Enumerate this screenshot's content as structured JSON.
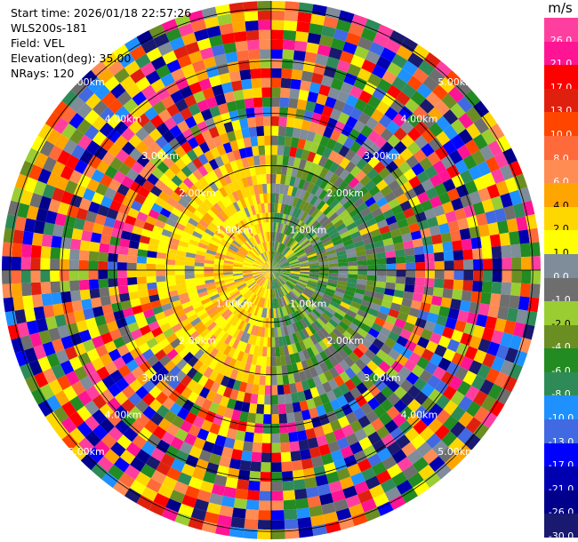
{
  "info": {
    "start_time": "Start time: 2026/01/18 22:57:26",
    "instrument": "WLS200s-181",
    "field": "Field: VEL",
    "elevation": "Elevation(deg): 35.00",
    "nrays": "NRays: 120"
  },
  "colorbar": {
    "unit": "m/s",
    "labels": [
      "26.0",
      "21.0",
      "17.0",
      "13.0",
      "10.0",
      "8.0",
      "6.0",
      "4.0",
      "2.0",
      "1.0",
      "0.0",
      "-1.0",
      "-2.0",
      "-4.0",
      "-6.0",
      "-8.0",
      "-10.0",
      "-13.0",
      "-17.0",
      "-21.0",
      "-26.0",
      "-30.0"
    ],
    "colors": [
      "#ff3fa0",
      "#ff1493",
      "#ff0000",
      "#e0200e",
      "#ff4500",
      "#ff6a3a",
      "#ff8c52",
      "#ffa500",
      "#ffd700",
      "#ffff00",
      "#7f8c9a",
      "#6e6e6e",
      "#9acd32",
      "#6b8e23",
      "#228b22",
      "#2e8b57",
      "#1e90ff",
      "#4169e1",
      "#0000ff",
      "#0000b0",
      "#00008b",
      "#191970"
    ]
  },
  "chart_data": {
    "type": "heatmap",
    "field": "VEL",
    "units": "m/s",
    "nrays": 120,
    "range_rings_km": [
      1.0,
      2.0,
      3.0,
      4.0,
      5.0
    ],
    "ring_labels": [
      "1.00km",
      "2.00km",
      "3.00km",
      "4.00km",
      "5.00km"
    ],
    "color_range": [
      -30.0,
      26.0
    ]
  }
}
